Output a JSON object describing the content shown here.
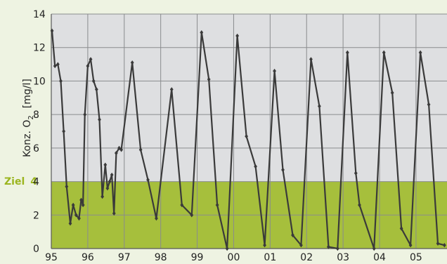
{
  "colors": {
    "background": "#eef3e2",
    "plot_upper": "#dedfe1",
    "plot_goal_band": "#a6bf3c",
    "grid": "#8a8c8e",
    "line": "#3a3a3a",
    "goal_label": "#9bb51f"
  },
  "goal_label": {
    "text": "Ziel",
    "value": 4
  },
  "chart_data": {
    "type": "line",
    "ylabel_main": "Konz. O",
    "ylabel_sub": "2",
    "ylabel_unit": "[mg/l]",
    "xlim": [
      1995,
      2005.85
    ],
    "ylim": [
      0,
      14
    ],
    "xtick_values": [
      1995,
      1996,
      1997,
      1998,
      1999,
      2000,
      2001,
      2002,
      2003,
      2004,
      2005
    ],
    "xtick_labels": [
      "95",
      "96",
      "97",
      "98",
      "99",
      "00",
      "01",
      "02",
      "03",
      "04",
      "05"
    ],
    "yticks": [
      0,
      2,
      4,
      6,
      8,
      10,
      12,
      14
    ],
    "grid": true,
    "goal_band": [
      0,
      4
    ],
    "series": [
      {
        "x": [
          1995.02,
          1995.1,
          1995.18,
          1995.26,
          1995.34,
          1995.42,
          1995.52,
          1995.6,
          1995.68,
          1995.76,
          1995.82,
          1995.87,
          1995.92,
          1996.0,
          1996.08,
          1996.16,
          1996.24,
          1996.32,
          1996.4,
          1996.48,
          1996.54,
          1996.6,
          1996.66,
          1996.72,
          1996.78,
          1996.86,
          1996.92,
          1997.22,
          1997.45,
          1997.65,
          1997.88,
          1998.3,
          1998.58,
          1998.85,
          1999.12,
          1999.32,
          1999.55,
          1999.82,
          2000.1,
          2000.35,
          2000.6,
          2000.85,
          2001.12,
          2001.35,
          2001.62,
          2001.85,
          2002.12,
          2002.35,
          2002.6,
          2002.85,
          2003.12,
          2003.35,
          2003.45,
          2003.85,
          2004.12,
          2004.35,
          2004.6,
          2004.85,
          2005.12,
          2005.35,
          2005.6,
          2005.78
        ],
        "y": [
          13.0,
          10.9,
          11.0,
          10.0,
          7.0,
          3.7,
          1.5,
          2.6,
          2.0,
          1.8,
          2.9,
          2.6,
          8.0,
          10.9,
          11.3,
          10.0,
          9.5,
          7.7,
          3.1,
          5.0,
          3.6,
          4.0,
          4.4,
          2.1,
          5.7,
          6.0,
          5.9,
          11.1,
          5.9,
          4.1,
          1.8,
          9.5,
          2.6,
          2.0,
          12.9,
          10.1,
          2.6,
          0.0,
          12.7,
          6.7,
          4.9,
          0.2,
          10.6,
          4.7,
          0.8,
          0.2,
          11.3,
          8.5,
          0.1,
          0.0,
          11.7,
          4.5,
          2.6,
          0.0,
          11.7,
          9.3,
          1.2,
          0.2,
          11.7,
          8.6,
          0.3,
          0.2
        ]
      }
    ]
  }
}
